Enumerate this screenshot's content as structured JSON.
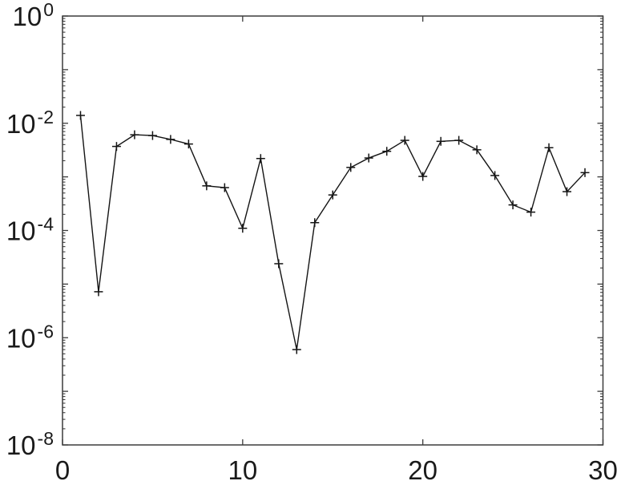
{
  "figure": {
    "background": "#ffffff",
    "description": "Semilogarithmic line plot with plus markers, no title or axis labels"
  },
  "chart_data": {
    "type": "line",
    "title": "",
    "xlabel": "",
    "ylabel": "",
    "yscale": "log",
    "grid": false,
    "legend": null,
    "xlim": [
      0,
      30
    ],
    "ylim_exponents": [
      -8,
      0
    ],
    "xticks": [
      0,
      10,
      20,
      30
    ],
    "xtick_labels": [
      "0",
      "10",
      "20",
      "30"
    ],
    "ytick_exponents": [
      0,
      -2,
      -4,
      -6,
      -8
    ],
    "ytick_base": "10",
    "marker": "plus",
    "line_color": "#141414",
    "axis_color": "#3c3c3c",
    "label_color": "#1a1a1a",
    "x": [
      1,
      2,
      3,
      4,
      5,
      6,
      7,
      8,
      9,
      10,
      11,
      12,
      13,
      14,
      15,
      16,
      17,
      18,
      19,
      20,
      21,
      22,
      23,
      24,
      25,
      26,
      27,
      28,
      29
    ],
    "y": [
      0.014,
      7.2e-06,
      0.0037,
      0.0061,
      0.0059,
      0.005,
      0.0041,
      0.00068,
      0.00063,
      0.00011,
      0.0022,
      2.4e-05,
      6e-07,
      0.00014,
      0.00046,
      0.0015,
      0.00225,
      0.003,
      0.0048,
      0.00102,
      0.0046,
      0.0048,
      0.0032,
      0.00106,
      0.0003,
      0.00022,
      0.0035,
      0.00053,
      0.0012
    ]
  }
}
